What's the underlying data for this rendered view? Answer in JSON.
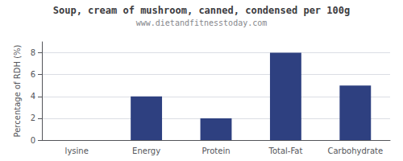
{
  "chart_data": {
    "type": "bar",
    "title": "Soup, cream of mushroom, canned, condensed per 100g",
    "subtitle": "www.dietandfitnesstoday.com",
    "categories": [
      "lysine",
      "Energy",
      "Protein",
      "Total-Fat",
      "Carbohydrate"
    ],
    "values": [
      0,
      4,
      2,
      8,
      5
    ],
    "color": "#2e4080",
    "ylabel": "Percentage of RDH (%)",
    "ylim": [
      0,
      9
    ],
    "yticks": [
      0,
      2,
      4,
      6,
      8
    ],
    "grid": true
  }
}
